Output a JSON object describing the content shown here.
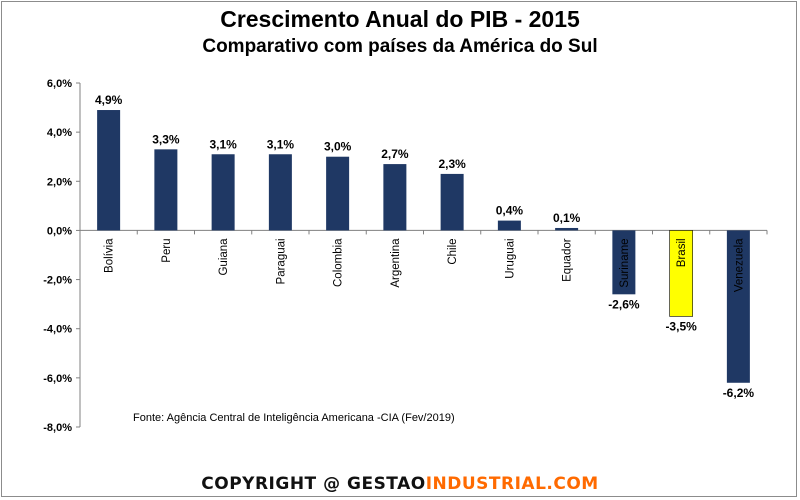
{
  "chart_data": {
    "type": "bar",
    "title": "Crescimento Anual do PIB - 2015",
    "subtitle": "Comparativo com países da América do Sul",
    "categories": [
      "Bolívia",
      "Peru",
      "Guiana",
      "Paraguai",
      "Colombia",
      "Argentina",
      "Chile",
      "Uruguai",
      "Equador",
      "Suriname",
      "Brasil",
      "Venezuela"
    ],
    "values": [
      4.9,
      3.3,
      3.1,
      3.1,
      3.0,
      2.7,
      2.3,
      0.4,
      0.1,
      -2.6,
      -3.5,
      -6.2
    ],
    "data_labels": [
      "4,9%",
      "3,3%",
      "3,1%",
      "3,1%",
      "3,0%",
      "2,7%",
      "2,3%",
      "0,4%",
      "0,1%",
      "-2,6%",
      "-3,5%",
      "-6,2%"
    ],
    "ylim": [
      -8,
      6
    ],
    "yticks": [
      6,
      4,
      2,
      0,
      -2,
      -4,
      -6,
      -8
    ],
    "ytick_labels": [
      "6,0%",
      "4,0%",
      "2,0%",
      "0,0%",
      "-2,0%",
      "-4,0%",
      "-6,0%",
      "-8,0%"
    ],
    "xlabel": "",
    "ylabel": "",
    "grid": false,
    "source": "Fonte: Agência Central de Inteligência Americana -CIA (Fev/2019)",
    "colors": {
      "default": "#1f3864",
      "highlight": "#ffff00",
      "highlight_category": "Brasil"
    }
  },
  "footer": {
    "copyright_prefix": "COPYRIGHT @ ",
    "brand_part1": "GESTAO",
    "brand_part2": "INDUSTRIAL.COM"
  }
}
